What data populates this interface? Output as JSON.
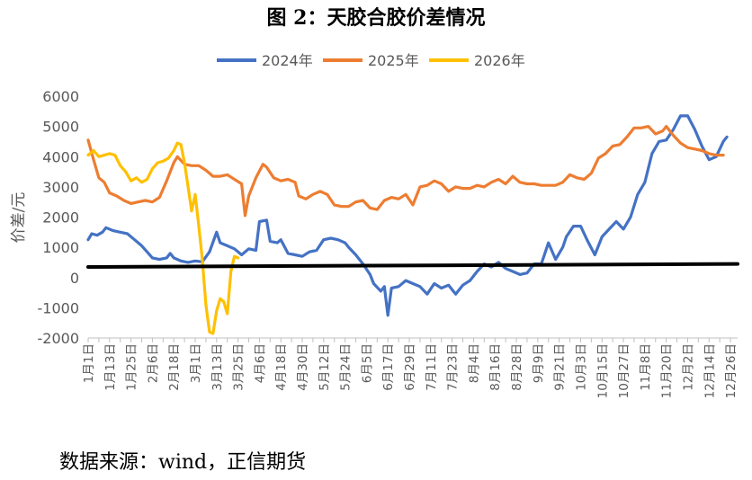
{
  "chart_data": {
    "type": "line",
    "title": "图 2：天胶合胶价差情况",
    "ylabel": "价差/元",
    "xlabel": "",
    "ylim": [
      -2000,
      6000
    ],
    "yticks": [
      6000,
      5000,
      4000,
      3000,
      2000,
      1000,
      0,
      -1000,
      -2000
    ],
    "x_tick_labels": [
      "1月1日",
      "1月13日",
      "1月25日",
      "2月6日",
      "2月18日",
      "3月1日",
      "3月13日",
      "3月25日",
      "4月6日",
      "4月18日",
      "4月30日",
      "5月12日",
      "5月24日",
      "6月5日",
      "6月17日",
      "6月29日",
      "7月11日",
      "7月23日",
      "8月4日",
      "8月16日",
      "8月28日",
      "9月9日",
      "9月21日",
      "10月3日",
      "10月15日",
      "10月27日",
      "11月8日",
      "11月20日",
      "12月2日",
      "12月14日",
      "12月26日"
    ],
    "x_tick_days": [
      0,
      12,
      24,
      36,
      48,
      60,
      72,
      84,
      96,
      108,
      120,
      132,
      144,
      156,
      168,
      180,
      192,
      204,
      216,
      228,
      240,
      252,
      264,
      276,
      288,
      300,
      312,
      324,
      336,
      348,
      360
    ],
    "x_range": [
      0,
      364
    ],
    "grid": false,
    "legend_position": "top",
    "series": [
      {
        "name": "2024年",
        "color": "#4472C4",
        "points": [
          [
            0,
            1250
          ],
          [
            2,
            1450
          ],
          [
            5,
            1400
          ],
          [
            8,
            1500
          ],
          [
            10,
            1650
          ],
          [
            14,
            1550
          ],
          [
            18,
            1500
          ],
          [
            22,
            1450
          ],
          [
            26,
            1250
          ],
          [
            30,
            1050
          ],
          [
            33,
            850
          ],
          [
            36,
            650
          ],
          [
            40,
            600
          ],
          [
            44,
            650
          ],
          [
            46,
            800
          ],
          [
            48,
            650
          ],
          [
            52,
            550
          ],
          [
            56,
            500
          ],
          [
            60,
            550
          ],
          [
            64,
            520
          ],
          [
            68,
            850
          ],
          [
            72,
            1500
          ],
          [
            74,
            1150
          ],
          [
            78,
            1050
          ],
          [
            82,
            950
          ],
          [
            86,
            750
          ],
          [
            90,
            950
          ],
          [
            94,
            900
          ],
          [
            96,
            1850
          ],
          [
            100,
            1900
          ],
          [
            102,
            1200
          ],
          [
            106,
            1150
          ],
          [
            108,
            1250
          ],
          [
            112,
            800
          ],
          [
            116,
            750
          ],
          [
            120,
            700
          ],
          [
            124,
            850
          ],
          [
            128,
            900
          ],
          [
            132,
            1250
          ],
          [
            136,
            1300
          ],
          [
            140,
            1250
          ],
          [
            144,
            1150
          ],
          [
            146,
            1000
          ],
          [
            150,
            750
          ],
          [
            154,
            450
          ],
          [
            158,
            100
          ],
          [
            160,
            -200
          ],
          [
            164,
            -450
          ],
          [
            166,
            -300
          ],
          [
            168,
            -1250
          ],
          [
            170,
            -350
          ],
          [
            174,
            -300
          ],
          [
            178,
            -100
          ],
          [
            182,
            -200
          ],
          [
            186,
            -300
          ],
          [
            190,
            -550
          ],
          [
            194,
            -200
          ],
          [
            198,
            -350
          ],
          [
            202,
            -250
          ],
          [
            206,
            -550
          ],
          [
            210,
            -250
          ],
          [
            214,
            -100
          ],
          [
            218,
            200
          ],
          [
            222,
            450
          ],
          [
            226,
            350
          ],
          [
            230,
            500
          ],
          [
            234,
            300
          ],
          [
            238,
            200
          ],
          [
            242,
            100
          ],
          [
            246,
            150
          ],
          [
            250,
            450
          ],
          [
            254,
            450
          ],
          [
            258,
            1150
          ],
          [
            262,
            600
          ],
          [
            266,
            1000
          ],
          [
            268,
            1350
          ],
          [
            272,
            1700
          ],
          [
            276,
            1700
          ],
          [
            280,
            1200
          ],
          [
            284,
            750
          ],
          [
            288,
            1350
          ],
          [
            292,
            1600
          ],
          [
            296,
            1850
          ],
          [
            300,
            1600
          ],
          [
            304,
            2000
          ],
          [
            308,
            2750
          ],
          [
            312,
            3150
          ],
          [
            316,
            4100
          ],
          [
            320,
            4500
          ],
          [
            324,
            4550
          ],
          [
            328,
            4900
          ],
          [
            332,
            5350
          ],
          [
            336,
            5350
          ],
          [
            340,
            4900
          ],
          [
            344,
            4350
          ],
          [
            348,
            3900
          ],
          [
            352,
            4000
          ],
          [
            356,
            4500
          ],
          [
            358,
            4650
          ]
        ]
      },
      {
        "name": "2025年",
        "color": "#ED7D31",
        "points": [
          [
            0,
            4550
          ],
          [
            3,
            3900
          ],
          [
            6,
            3300
          ],
          [
            9,
            3150
          ],
          [
            12,
            2800
          ],
          [
            16,
            2700
          ],
          [
            20,
            2550
          ],
          [
            24,
            2450
          ],
          [
            28,
            2500
          ],
          [
            32,
            2550
          ],
          [
            36,
            2500
          ],
          [
            40,
            2650
          ],
          [
            44,
            3200
          ],
          [
            48,
            3800
          ],
          [
            50,
            4000
          ],
          [
            54,
            3750
          ],
          [
            58,
            3700
          ],
          [
            62,
            3700
          ],
          [
            66,
            3550
          ],
          [
            70,
            3350
          ],
          [
            74,
            3350
          ],
          [
            78,
            3400
          ],
          [
            82,
            3250
          ],
          [
            86,
            3100
          ],
          [
            88,
            2050
          ],
          [
            90,
            2700
          ],
          [
            94,
            3300
          ],
          [
            98,
            3750
          ],
          [
            100,
            3650
          ],
          [
            104,
            3300
          ],
          [
            108,
            3200
          ],
          [
            112,
            3250
          ],
          [
            116,
            3150
          ],
          [
            118,
            2700
          ],
          [
            122,
            2600
          ],
          [
            126,
            2750
          ],
          [
            130,
            2850
          ],
          [
            134,
            2750
          ],
          [
            138,
            2400
          ],
          [
            142,
            2350
          ],
          [
            146,
            2350
          ],
          [
            150,
            2500
          ],
          [
            154,
            2550
          ],
          [
            158,
            2300
          ],
          [
            162,
            2250
          ],
          [
            166,
            2550
          ],
          [
            170,
            2650
          ],
          [
            174,
            2600
          ],
          [
            178,
            2750
          ],
          [
            182,
            2400
          ],
          [
            186,
            3000
          ],
          [
            190,
            3050
          ],
          [
            194,
            3200
          ],
          [
            198,
            3100
          ],
          [
            202,
            2850
          ],
          [
            206,
            3000
          ],
          [
            210,
            2950
          ],
          [
            214,
            2950
          ],
          [
            218,
            3050
          ],
          [
            222,
            3000
          ],
          [
            226,
            3150
          ],
          [
            230,
            3250
          ],
          [
            234,
            3100
          ],
          [
            238,
            3350
          ],
          [
            242,
            3150
          ],
          [
            246,
            3100
          ],
          [
            250,
            3100
          ],
          [
            254,
            3050
          ],
          [
            258,
            3050
          ],
          [
            262,
            3050
          ],
          [
            266,
            3150
          ],
          [
            270,
            3400
          ],
          [
            274,
            3300
          ],
          [
            278,
            3250
          ],
          [
            282,
            3450
          ],
          [
            286,
            3950
          ],
          [
            290,
            4100
          ],
          [
            294,
            4350
          ],
          [
            298,
            4400
          ],
          [
            302,
            4650
          ],
          [
            306,
            4950
          ],
          [
            310,
            4950
          ],
          [
            314,
            5000
          ],
          [
            318,
            4750
          ],
          [
            322,
            4850
          ],
          [
            324,
            5000
          ],
          [
            328,
            4700
          ],
          [
            332,
            4450
          ],
          [
            336,
            4300
          ],
          [
            340,
            4250
          ],
          [
            344,
            4200
          ],
          [
            348,
            4100
          ],
          [
            352,
            4050
          ],
          [
            356,
            4050
          ]
        ]
      },
      {
        "name": "2026年",
        "color": "#FFC000",
        "points": [
          [
            0,
            4050
          ],
          [
            3,
            4200
          ],
          [
            6,
            4000
          ],
          [
            9,
            4050
          ],
          [
            12,
            4100
          ],
          [
            15,
            4050
          ],
          [
            18,
            3700
          ],
          [
            21,
            3500
          ],
          [
            24,
            3200
          ],
          [
            27,
            3300
          ],
          [
            30,
            3150
          ],
          [
            33,
            3250
          ],
          [
            36,
            3600
          ],
          [
            39,
            3800
          ],
          [
            42,
            3850
          ],
          [
            45,
            3950
          ],
          [
            48,
            4200
          ],
          [
            50,
            4450
          ],
          [
            52,
            4400
          ],
          [
            54,
            3800
          ],
          [
            56,
            3000
          ],
          [
            58,
            2200
          ],
          [
            60,
            2750
          ],
          [
            62,
            1700
          ],
          [
            64,
            600
          ],
          [
            66,
            -900
          ],
          [
            68,
            -1800
          ],
          [
            70,
            -1850
          ],
          [
            72,
            -1100
          ],
          [
            74,
            -700
          ],
          [
            76,
            -800
          ],
          [
            78,
            -1200
          ],
          [
            80,
            200
          ],
          [
            82,
            700
          ],
          [
            84,
            650
          ]
        ]
      },
      {
        "name": "",
        "color": "#000000",
        "line_width": 4,
        "points": [
          [
            0,
            350
          ],
          [
            364,
            450
          ]
        ]
      }
    ]
  },
  "source_note": "数据来源：wind，正信期货"
}
